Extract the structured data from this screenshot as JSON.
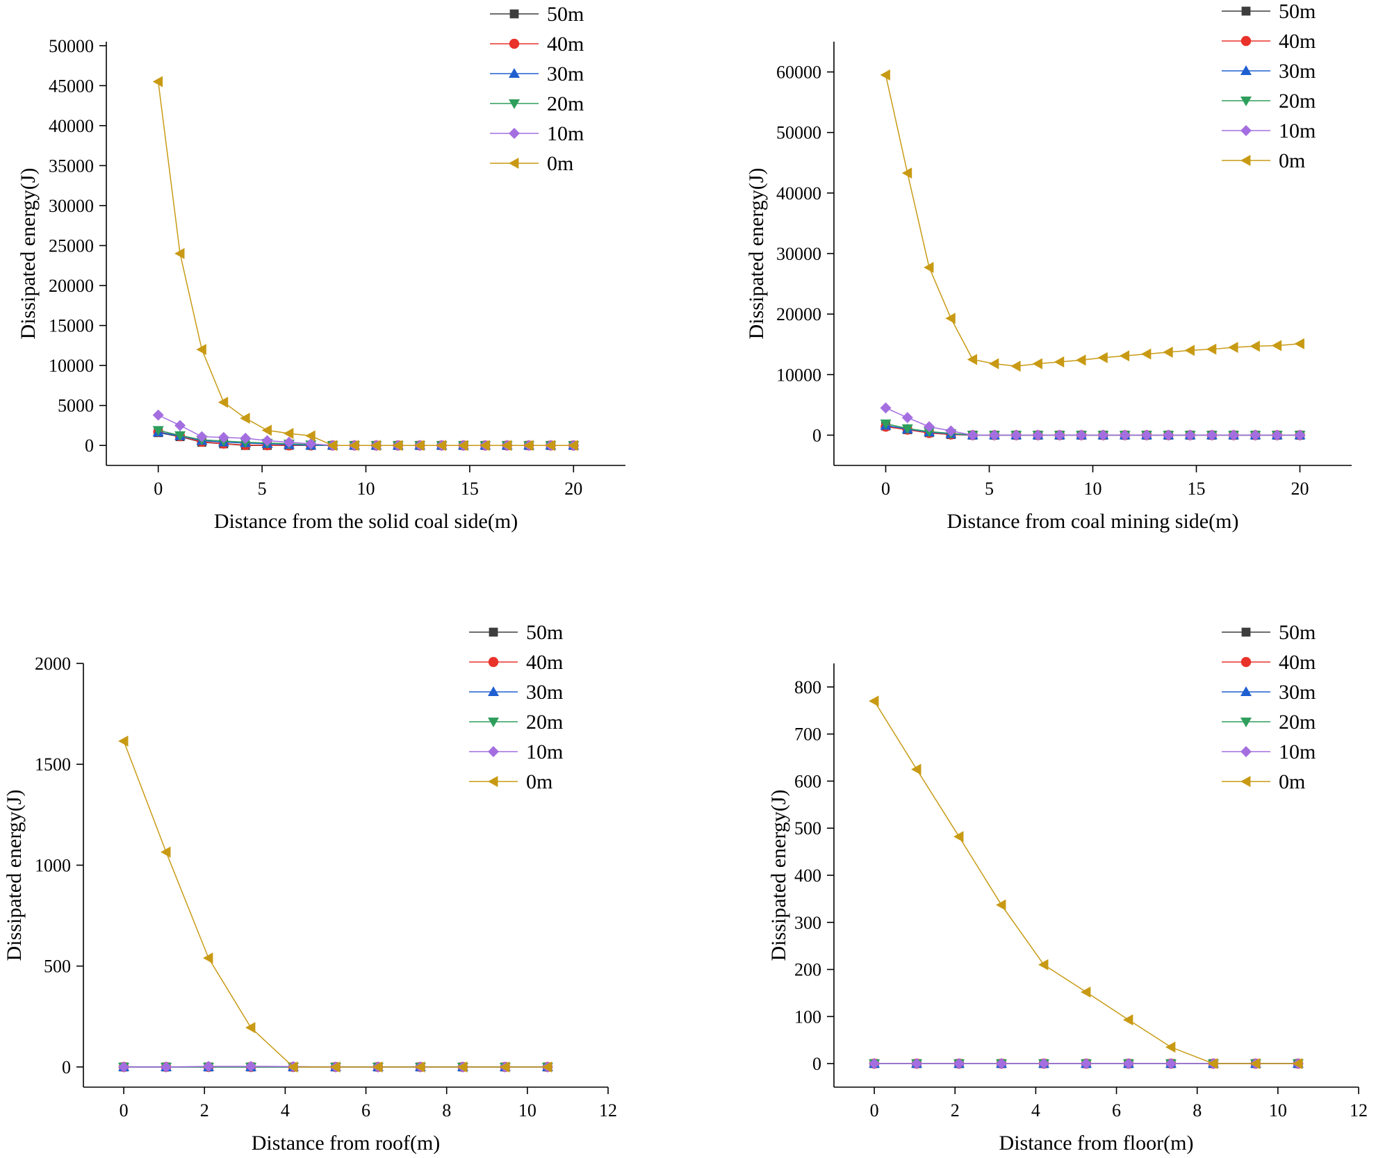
{
  "colors": {
    "50m": "#3d3d3d",
    "40m": "#e8322a",
    "30m": "#1f5fd0",
    "20m": "#2e9e5c",
    "10m": "#a46ee0",
    "0m": "#c89a14"
  },
  "markers": {
    "50m": "square",
    "40m": "circle",
    "30m": "triangle-up",
    "20m": "triangle-down",
    "10m": "diamond",
    "0m": "triangle-left"
  },
  "chart_data": [
    {
      "type": "line",
      "title": "",
      "xlabel": "Distance from the solid coal side(m)",
      "ylabel": "Dissipated energy(J)",
      "xlim": [
        -2.5,
        22.5
      ],
      "ylim": [
        -2500,
        50500
      ],
      "xticks": [
        0,
        5,
        10,
        15,
        20
      ],
      "yticks": [
        0,
        5000,
        10000,
        15000,
        20000,
        25000,
        30000,
        35000,
        40000,
        45000,
        50000
      ],
      "legend_position": "top-right",
      "x": [
        0,
        1.05,
        2.1,
        3.15,
        4.2,
        5.25,
        6.3,
        7.35,
        8.4,
        9.45,
        10.5,
        11.55,
        12.6,
        13.65,
        14.7,
        15.75,
        16.8,
        17.85,
        18.9,
        20
      ],
      "series": [
        {
          "name": "50m",
          "values": [
            1600,
            1100,
            400,
            200,
            0,
            0,
            0,
            0,
            0,
            0,
            0,
            0,
            0,
            0,
            0,
            0,
            0,
            0,
            0,
            0
          ]
        },
        {
          "name": "40m",
          "values": [
            1700,
            1150,
            450,
            220,
            50,
            20,
            0,
            0,
            0,
            0,
            0,
            0,
            0,
            0,
            0,
            0,
            0,
            0,
            0,
            0
          ]
        },
        {
          "name": "30m",
          "values": [
            1650,
            1200,
            600,
            400,
            300,
            200,
            100,
            0,
            0,
            0,
            0,
            0,
            0,
            0,
            0,
            0,
            0,
            0,
            0,
            0
          ]
        },
        {
          "name": "20m",
          "values": [
            1900,
            1250,
            700,
            550,
            400,
            300,
            200,
            100,
            0,
            0,
            0,
            0,
            0,
            0,
            0,
            0,
            0,
            0,
            0,
            0
          ]
        },
        {
          "name": "10m",
          "values": [
            3800,
            2500,
            1100,
            1000,
            900,
            600,
            400,
            200,
            0,
            0,
            0,
            0,
            0,
            0,
            0,
            0,
            0,
            0,
            0,
            0
          ]
        },
        {
          "name": "0m",
          "values": [
            45500,
            24000,
            12000,
            5400,
            3400,
            1900,
            1500,
            1200,
            0,
            0,
            0,
            0,
            0,
            0,
            0,
            0,
            0,
            0,
            0,
            0
          ]
        }
      ]
    },
    {
      "type": "line",
      "title": "",
      "xlabel": "Distance from coal mining side(m)",
      "ylabel": "Dissipated energy(J)",
      "xlim": [
        -2.5,
        22.5
      ],
      "ylim": [
        -5000,
        65000
      ],
      "xticks": [
        0,
        5,
        10,
        15,
        20
      ],
      "yticks": [
        0,
        10000,
        20000,
        30000,
        40000,
        50000,
        60000
      ],
      "legend_position": "top-right",
      "x": [
        0,
        1.05,
        2.1,
        3.15,
        4.2,
        5.25,
        6.3,
        7.35,
        8.4,
        9.45,
        10.5,
        11.55,
        12.6,
        13.65,
        14.7,
        15.75,
        16.8,
        17.85,
        18.9,
        20
      ],
      "series": [
        {
          "name": "50m",
          "values": [
            1500,
            900,
            400,
            100,
            0,
            0,
            0,
            0,
            0,
            0,
            0,
            0,
            0,
            0,
            0,
            0,
            0,
            0,
            0,
            0
          ]
        },
        {
          "name": "40m",
          "values": [
            1400,
            900,
            350,
            100,
            0,
            0,
            0,
            0,
            0,
            0,
            0,
            0,
            0,
            0,
            0,
            0,
            0,
            0,
            0,
            0
          ]
        },
        {
          "name": "30m",
          "values": [
            1600,
            1000,
            500,
            200,
            0,
            0,
            0,
            0,
            0,
            0,
            0,
            0,
            0,
            0,
            0,
            0,
            0,
            0,
            0,
            0
          ]
        },
        {
          "name": "20m",
          "values": [
            1900,
            1100,
            600,
            300,
            0,
            0,
            0,
            0,
            0,
            0,
            0,
            0,
            0,
            0,
            0,
            0,
            0,
            0,
            0,
            0
          ]
        },
        {
          "name": "10m",
          "values": [
            4500,
            2900,
            1400,
            700,
            0,
            0,
            0,
            0,
            0,
            0,
            0,
            0,
            0,
            0,
            0,
            0,
            0,
            0,
            0,
            0
          ]
        },
        {
          "name": "0m",
          "values": [
            59500,
            43300,
            27700,
            19300,
            12500,
            11800,
            11400,
            11800,
            12100,
            12400,
            12800,
            13100,
            13400,
            13700,
            14000,
            14200,
            14500,
            14700,
            14800,
            15100
          ]
        }
      ]
    },
    {
      "type": "line",
      "title": "",
      "xlabel": "Distance from roof(m)",
      "ylabel": "Dissipated energy(J)",
      "xlim": [
        -1,
        12
      ],
      "ylim": [
        -100,
        2000
      ],
      "xticks": [
        0,
        2,
        4,
        6,
        8,
        10,
        12
      ],
      "yticks": [
        0,
        500,
        1000,
        1500,
        2000
      ],
      "legend_position": "top-right",
      "x": [
        0,
        1.05,
        2.1,
        3.15,
        4.2,
        5.25,
        6.3,
        7.35,
        8.4,
        9.45,
        10.5
      ],
      "series": [
        {
          "name": "50m",
          "values": [
            0,
            0,
            0,
            0,
            0,
            0,
            0,
            0,
            0,
            0,
            0
          ]
        },
        {
          "name": "40m",
          "values": [
            0,
            0,
            0,
            0,
            0,
            0,
            0,
            0,
            0,
            0,
            0
          ]
        },
        {
          "name": "30m",
          "values": [
            0,
            0,
            0,
            0,
            0,
            0,
            0,
            0,
            0,
            0,
            0
          ]
        },
        {
          "name": "20m",
          "values": [
            0,
            0,
            0,
            0,
            0,
            0,
            0,
            0,
            0,
            0,
            0
          ]
        },
        {
          "name": "10m",
          "values": [
            0,
            0,
            3,
            3,
            2,
            0,
            0,
            0,
            0,
            0,
            0
          ]
        },
        {
          "name": "0m",
          "values": [
            1615,
            1065,
            540,
            195,
            0,
            0,
            0,
            0,
            0,
            0,
            0
          ]
        }
      ]
    },
    {
      "type": "line",
      "title": "",
      "xlabel": "Distance from floor(m)",
      "ylabel": "Dissipated energy(J)",
      "xlim": [
        -1,
        12
      ],
      "ylim": [
        -50,
        850
      ],
      "xticks": [
        0,
        2,
        4,
        6,
        8,
        10,
        12
      ],
      "yticks": [
        0,
        100,
        200,
        300,
        400,
        500,
        600,
        700,
        800
      ],
      "legend_position": "top-right",
      "x": [
        0,
        1.05,
        2.1,
        3.15,
        4.2,
        5.25,
        6.3,
        7.35,
        8.4,
        9.45,
        10.5
      ],
      "series": [
        {
          "name": "50m",
          "values": [
            0,
            0,
            0,
            0,
            0,
            0,
            0,
            0,
            0,
            0,
            0
          ]
        },
        {
          "name": "40m",
          "values": [
            0,
            0,
            0,
            0,
            0,
            0,
            0,
            0,
            0,
            0,
            0
          ]
        },
        {
          "name": "30m",
          "values": [
            0,
            0,
            0,
            0,
            0,
            0,
            0,
            0,
            0,
            0,
            0
          ]
        },
        {
          "name": "20m",
          "values": [
            0,
            0,
            0,
            0,
            0,
            0,
            0,
            0,
            0,
            0,
            0
          ]
        },
        {
          "name": "10m",
          "values": [
            0,
            0,
            0,
            0,
            0,
            0,
            0,
            0,
            0,
            0,
            0
          ]
        },
        {
          "name": "0m",
          "values": [
            770,
            625,
            482,
            337,
            210,
            152,
            93,
            35,
            0,
            0,
            0
          ]
        }
      ]
    }
  ]
}
